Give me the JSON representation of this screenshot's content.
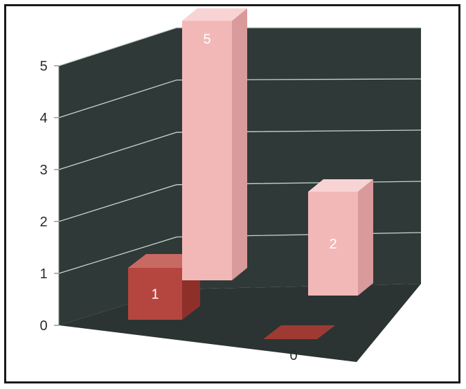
{
  "chart_data": {
    "type": "bar",
    "view": "3d-column",
    "categories": [
      "",
      "",
      "",
      ""
    ],
    "values": [
      1,
      5,
      0,
      2
    ],
    "data_labels": [
      "1",
      "5",
      "0",
      "2"
    ],
    "y_ticks": [
      "0",
      "1",
      "2",
      "3",
      "4",
      "5"
    ],
    "ylim": [
      0,
      5
    ],
    "grid": true,
    "legend": "none",
    "title": "",
    "xlabel": "",
    "ylabel": "",
    "colors": {
      "bar_dark": "#b5463f",
      "bar_light": "#f2b8b8",
      "walls": "#2f3a38",
      "floor": "#2b3432",
      "gridline": "#c9d3d0"
    }
  }
}
